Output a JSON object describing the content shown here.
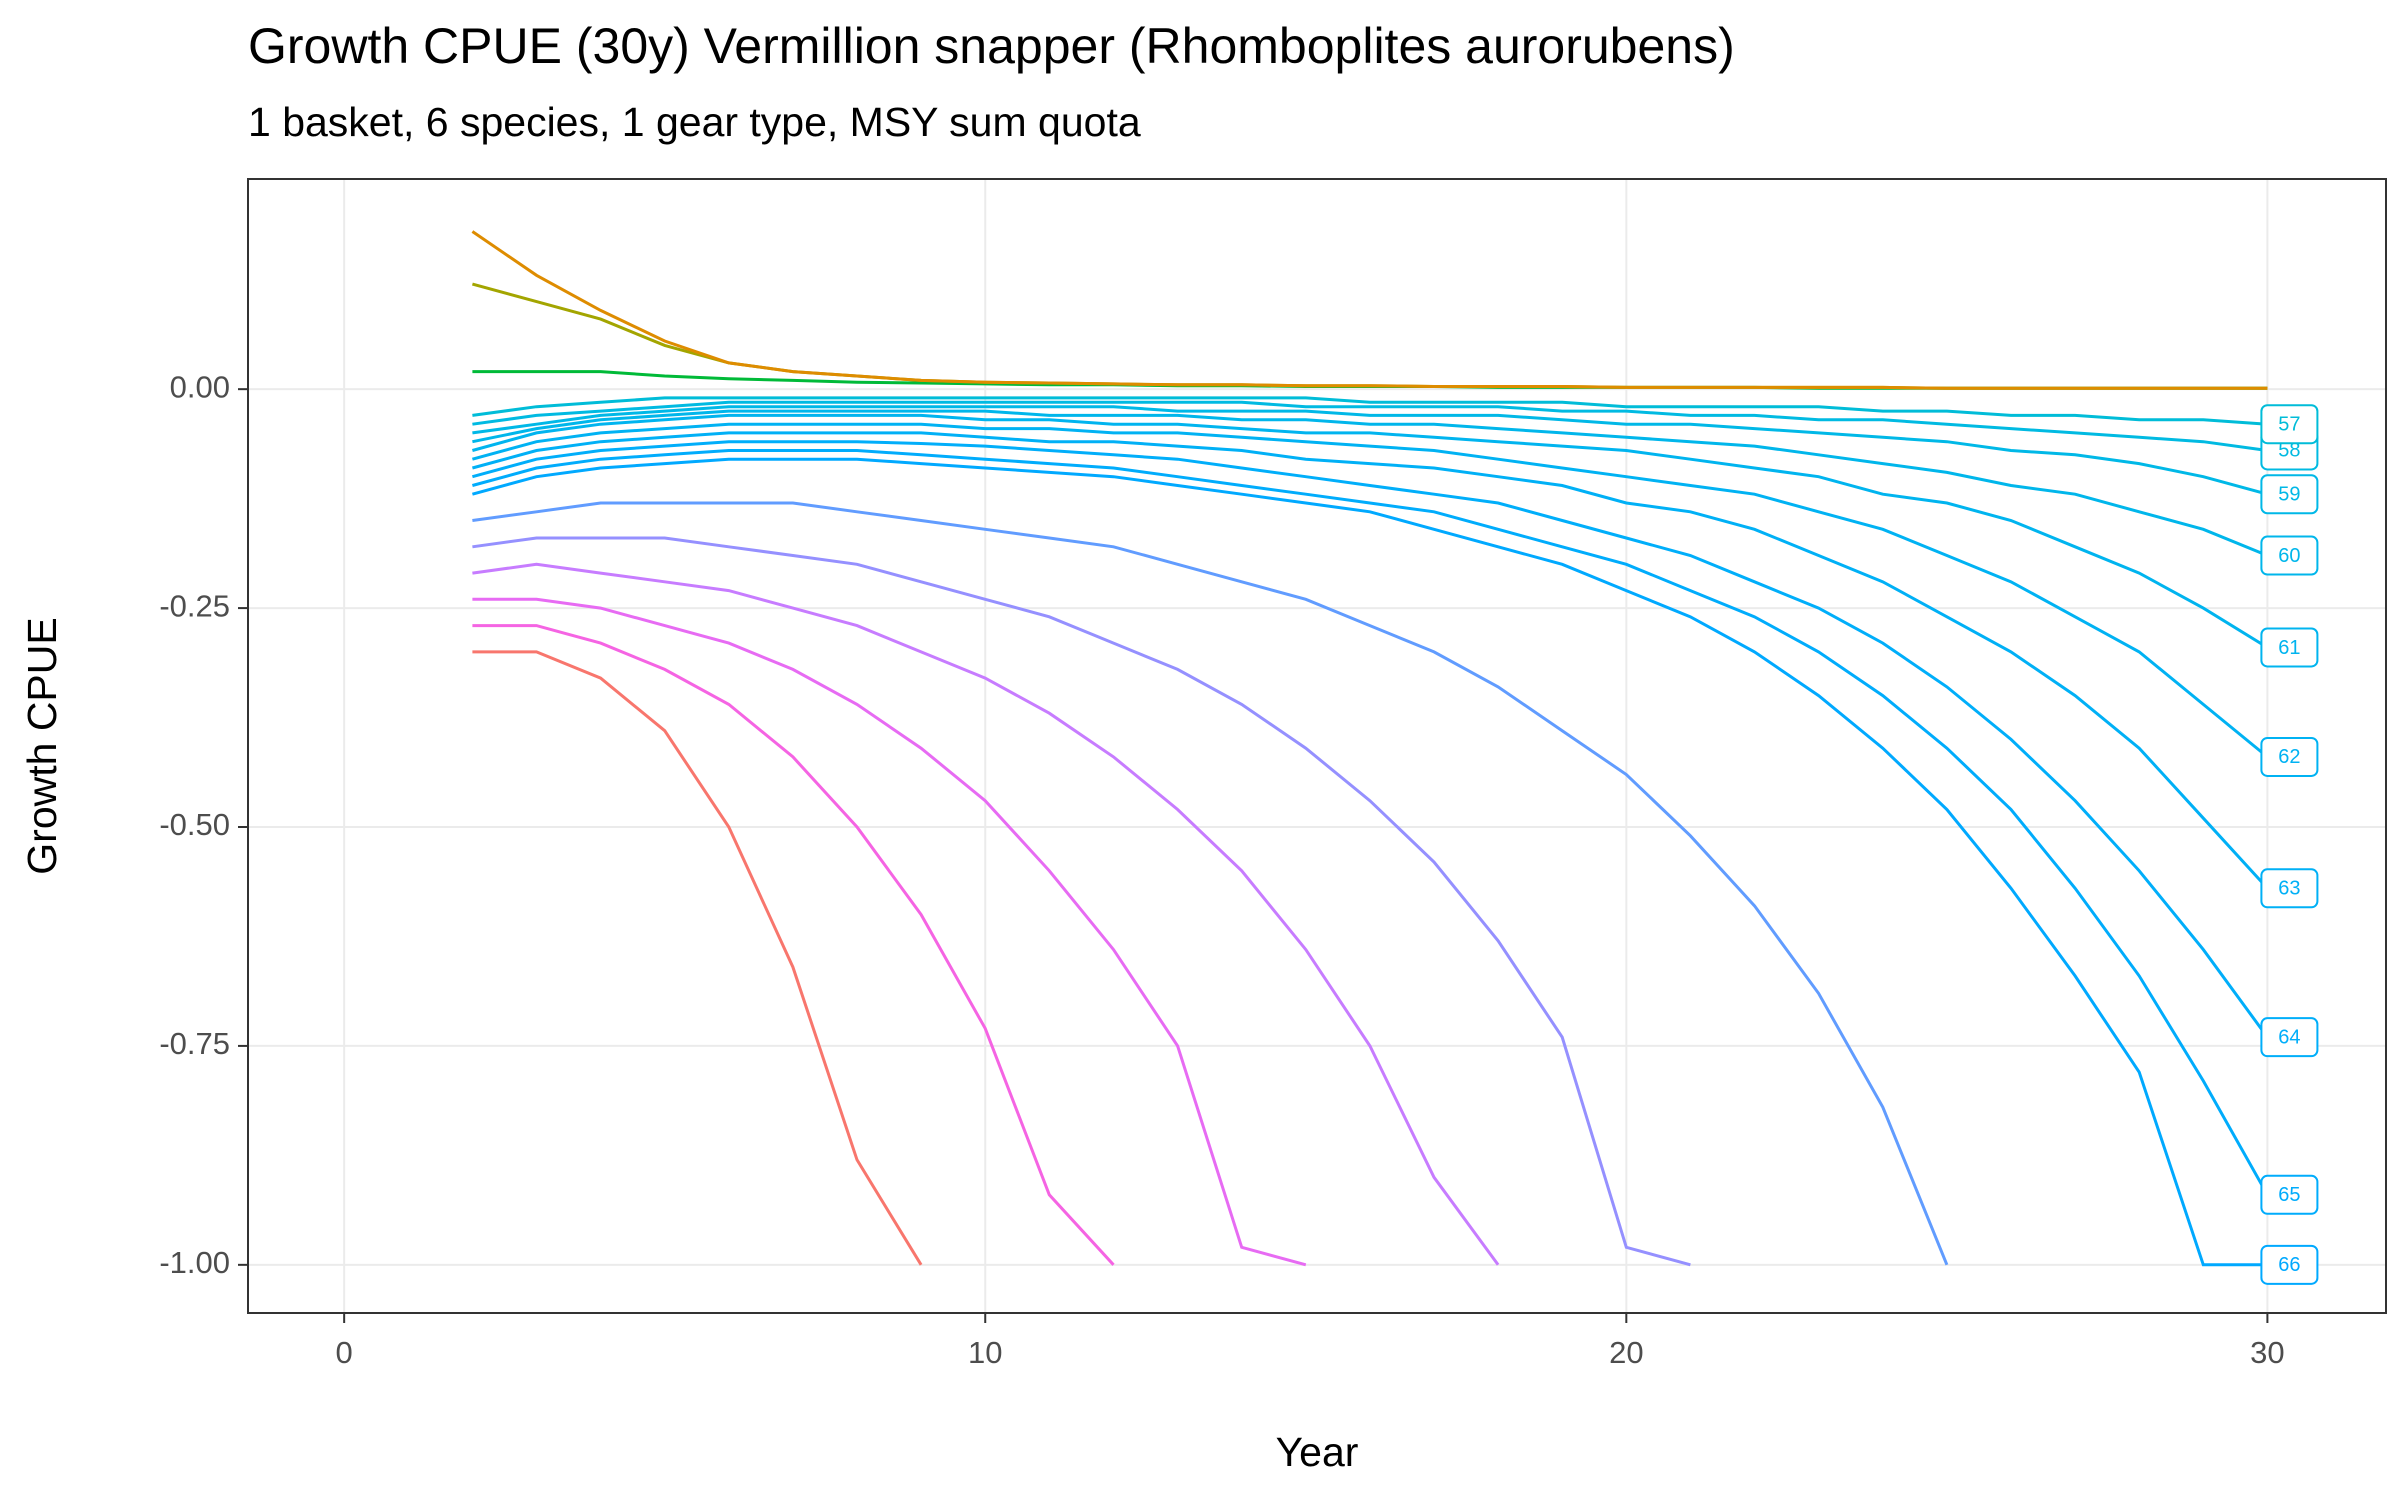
{
  "chart_data": {
    "type": "line",
    "title": "Growth CPUE (30y) Vermillion snapper (Rhomboplites aurorubens)",
    "subtitle": "1 basket, 6 species, 1 gear type, MSY sum quota",
    "x_label": "Year",
    "y_label": "Growth CPUE",
    "xlim": [
      -1.5,
      31.85
    ],
    "ylim": [
      -1.055,
      0.24
    ],
    "xticks": [
      0,
      10,
      20,
      30
    ],
    "yticks": [
      {
        "value": 0,
        "label": "0.00"
      },
      {
        "value": -0.25,
        "label": "-0.25"
      },
      {
        "value": -0.5,
        "label": "-0.50"
      },
      {
        "value": -0.75,
        "label": "-0.75"
      },
      {
        "value": -1,
        "label": "-1.00"
      }
    ],
    "grid": true,
    "x": [
      2,
      3,
      4,
      5,
      6,
      7,
      8,
      9,
      10,
      11,
      12,
      13,
      14,
      15,
      16,
      17,
      18,
      19,
      20,
      21,
      22,
      23,
      24,
      25,
      26,
      27,
      28,
      29,
      30
    ],
    "series": [
      {
        "color": "#f8766d",
        "values": [
          -0.3,
          -0.3,
          -0.33,
          -0.39,
          -0.5,
          -0.66,
          -0.88,
          -1.0,
          null,
          null,
          null,
          null,
          null,
          null,
          null,
          null,
          null,
          null,
          null,
          null,
          null,
          null,
          null,
          null,
          null,
          null,
          null,
          null,
          null
        ]
      },
      {
        "color": "#f564e3",
        "values": [
          -0.27,
          -0.27,
          -0.29,
          -0.32,
          -0.36,
          -0.42,
          -0.5,
          -0.6,
          -0.73,
          -0.92,
          -1.0,
          null,
          null,
          null,
          null,
          null,
          null,
          null,
          null,
          null,
          null,
          null,
          null,
          null,
          null,
          null,
          null,
          null,
          null
        ]
      },
      {
        "color": "#e76bf3",
        "values": [
          -0.24,
          -0.24,
          -0.25,
          -0.27,
          -0.29,
          -0.32,
          -0.36,
          -0.41,
          -0.47,
          -0.55,
          -0.64,
          -0.75,
          -0.98,
          -1.0,
          null,
          null,
          null,
          null,
          null,
          null,
          null,
          null,
          null,
          null,
          null,
          null,
          null,
          null,
          null
        ]
      },
      {
        "color": "#c77cff",
        "values": [
          -0.21,
          -0.2,
          -0.21,
          -0.22,
          -0.23,
          -0.25,
          -0.27,
          -0.3,
          -0.33,
          -0.37,
          -0.42,
          -0.48,
          -0.55,
          -0.64,
          -0.75,
          -0.9,
          -1.0,
          null,
          null,
          null,
          null,
          null,
          null,
          null,
          null,
          null,
          null,
          null,
          null
        ]
      },
      {
        "color": "#9590ff",
        "values": [
          -0.18,
          -0.17,
          -0.17,
          -0.17,
          -0.18,
          -0.19,
          -0.2,
          -0.22,
          -0.24,
          -0.26,
          -0.29,
          -0.32,
          -0.36,
          -0.41,
          -0.47,
          -0.54,
          -0.63,
          -0.74,
          -0.98,
          -1.0,
          null,
          null,
          null,
          null,
          null,
          null,
          null,
          null,
          null
        ]
      },
      {
        "color": "#619cff",
        "values": [
          -0.15,
          -0.14,
          -0.13,
          -0.13,
          -0.13,
          -0.13,
          -0.14,
          -0.15,
          -0.16,
          -0.17,
          -0.18,
          -0.2,
          -0.22,
          -0.24,
          -0.27,
          -0.3,
          -0.34,
          -0.39,
          -0.44,
          -0.51,
          -0.59,
          -0.69,
          -0.82,
          -1.0,
          null,
          null,
          null,
          null,
          null
        ]
      },
      {
        "name": "66",
        "color": "#00a9ff",
        "values": [
          -0.12,
          -0.1,
          -0.09,
          -0.085,
          -0.08,
          -0.08,
          -0.08,
          -0.085,
          -0.09,
          -0.095,
          -0.1,
          -0.11,
          -0.12,
          -0.13,
          -0.14,
          -0.16,
          -0.18,
          -0.2,
          -0.23,
          -0.26,
          -0.3,
          -0.35,
          -0.41,
          -0.48,
          -0.57,
          -0.67,
          -0.78,
          -1.0,
          -1.0
        ]
      },
      {
        "name": "65",
        "color": "#00acfc",
        "values": [
          -0.11,
          -0.09,
          -0.08,
          -0.075,
          -0.07,
          -0.07,
          -0.07,
          -0.075,
          -0.08,
          -0.085,
          -0.09,
          -0.1,
          -0.11,
          -0.12,
          -0.13,
          -0.14,
          -0.16,
          -0.18,
          -0.2,
          -0.23,
          -0.26,
          -0.3,
          -0.35,
          -0.41,
          -0.48,
          -0.57,
          -0.67,
          -0.79,
          -0.92
        ]
      },
      {
        "name": "64",
        "color": "#00aefa",
        "values": [
          -0.1,
          -0.08,
          -0.07,
          -0.065,
          -0.06,
          -0.06,
          -0.06,
          -0.062,
          -0.065,
          -0.07,
          -0.075,
          -0.08,
          -0.09,
          -0.1,
          -0.11,
          -0.12,
          -0.13,
          -0.15,
          -0.17,
          -0.19,
          -0.22,
          -0.25,
          -0.29,
          -0.34,
          -0.4,
          -0.47,
          -0.55,
          -0.64,
          -0.74
        ]
      },
      {
        "name": "63",
        "color": "#00b0f6",
        "values": [
          -0.09,
          -0.07,
          -0.06,
          -0.055,
          -0.05,
          -0.05,
          -0.05,
          -0.05,
          -0.055,
          -0.06,
          -0.06,
          -0.065,
          -0.07,
          -0.08,
          -0.085,
          -0.09,
          -0.1,
          -0.11,
          -0.13,
          -0.14,
          -0.16,
          -0.19,
          -0.22,
          -0.26,
          -0.3,
          -0.35,
          -0.41,
          -0.49,
          -0.57
        ]
      },
      {
        "name": "62",
        "color": "#00b2f3",
        "values": [
          -0.08,
          -0.06,
          -0.05,
          -0.045,
          -0.04,
          -0.04,
          -0.04,
          -0.04,
          -0.045,
          -0.045,
          -0.05,
          -0.05,
          -0.055,
          -0.06,
          -0.065,
          -0.07,
          -0.08,
          -0.09,
          -0.1,
          -0.11,
          -0.12,
          -0.14,
          -0.16,
          -0.19,
          -0.22,
          -0.26,
          -0.3,
          -0.36,
          -0.42
        ]
      },
      {
        "name": "61",
        "color": "#00b4ef",
        "values": [
          -0.07,
          -0.05,
          -0.04,
          -0.035,
          -0.03,
          -0.03,
          -0.03,
          -0.03,
          -0.035,
          -0.035,
          -0.04,
          -0.04,
          -0.045,
          -0.05,
          -0.05,
          -0.055,
          -0.06,
          -0.065,
          -0.07,
          -0.08,
          -0.09,
          -0.1,
          -0.12,
          -0.13,
          -0.15,
          -0.18,
          -0.21,
          -0.25,
          -0.295
        ]
      },
      {
        "name": "60",
        "color": "#00b6eb",
        "values": [
          -0.06,
          -0.045,
          -0.035,
          -0.03,
          -0.025,
          -0.025,
          -0.025,
          -0.025,
          -0.025,
          -0.03,
          -0.03,
          -0.03,
          -0.035,
          -0.035,
          -0.04,
          -0.04,
          -0.045,
          -0.05,
          -0.055,
          -0.06,
          -0.065,
          -0.075,
          -0.085,
          -0.095,
          -0.11,
          -0.12,
          -0.14,
          -0.16,
          -0.19
        ]
      },
      {
        "name": "59",
        "color": "#00b8e7",
        "values": [
          -0.05,
          -0.04,
          -0.03,
          -0.025,
          -0.02,
          -0.02,
          -0.02,
          -0.02,
          -0.02,
          -0.02,
          -0.02,
          -0.025,
          -0.025,
          -0.025,
          -0.03,
          -0.03,
          -0.03,
          -0.035,
          -0.04,
          -0.04,
          -0.045,
          -0.05,
          -0.055,
          -0.06,
          -0.07,
          -0.075,
          -0.085,
          -0.1,
          -0.12
        ]
      },
      {
        "name": "58",
        "color": "#00bae2",
        "values": [
          -0.04,
          -0.03,
          -0.025,
          -0.02,
          -0.015,
          -0.015,
          -0.015,
          -0.015,
          -0.015,
          -0.015,
          -0.015,
          -0.015,
          -0.015,
          -0.02,
          -0.02,
          -0.02,
          -0.02,
          -0.025,
          -0.025,
          -0.03,
          -0.03,
          -0.035,
          -0.035,
          -0.04,
          -0.045,
          -0.05,
          -0.055,
          -0.06,
          -0.07
        ]
      },
      {
        "name": "57",
        "color": "#00bcd8",
        "values": [
          -0.03,
          -0.02,
          -0.015,
          -0.01,
          -0.01,
          -0.01,
          -0.01,
          -0.01,
          -0.01,
          -0.01,
          -0.01,
          -0.01,
          -0.01,
          -0.01,
          -0.015,
          -0.015,
          -0.015,
          -0.015,
          -0.02,
          -0.02,
          -0.02,
          -0.02,
          -0.025,
          -0.025,
          -0.03,
          -0.03,
          -0.035,
          -0.035,
          -0.04
        ]
      },
      {
        "color": "#00ba38",
        "values": [
          0.02,
          0.02,
          0.02,
          0.015,
          0.012,
          0.01,
          0.008,
          0.007,
          0.006,
          0.005,
          0.005,
          0.004,
          0.004,
          0.003,
          0.003,
          0.003,
          0.002,
          0.002,
          0.002,
          0.002,
          0.002,
          0.001,
          0.001,
          0.001,
          0.001,
          0.001,
          0.001,
          0.001,
          0.001
        ]
      },
      {
        "color": "#a3a500",
        "values": [
          0.12,
          0.1,
          0.08,
          0.05,
          0.03,
          0.02,
          0.015,
          0.01,
          0.008,
          0.007,
          0.006,
          0.005,
          0.005,
          0.004,
          0.004,
          0.003,
          0.003,
          0.003,
          0.002,
          0.002,
          0.002,
          0.002,
          0.002,
          0.001,
          0.001,
          0.001,
          0.001,
          0.001,
          0.001
        ]
      },
      {
        "color": "#de8c00",
        "values": [
          0.18,
          0.13,
          0.09,
          0.055,
          0.03,
          0.02,
          0.015,
          0.01,
          0.008,
          0.007,
          0.006,
          0.005,
          0.005,
          0.004,
          0.004,
          0.003,
          0.003,
          0.003,
          0.002,
          0.002,
          0.002,
          0.002,
          0.002,
          0.001,
          0.001,
          0.001,
          0.001,
          0.001,
          0.001
        ]
      }
    ]
  }
}
